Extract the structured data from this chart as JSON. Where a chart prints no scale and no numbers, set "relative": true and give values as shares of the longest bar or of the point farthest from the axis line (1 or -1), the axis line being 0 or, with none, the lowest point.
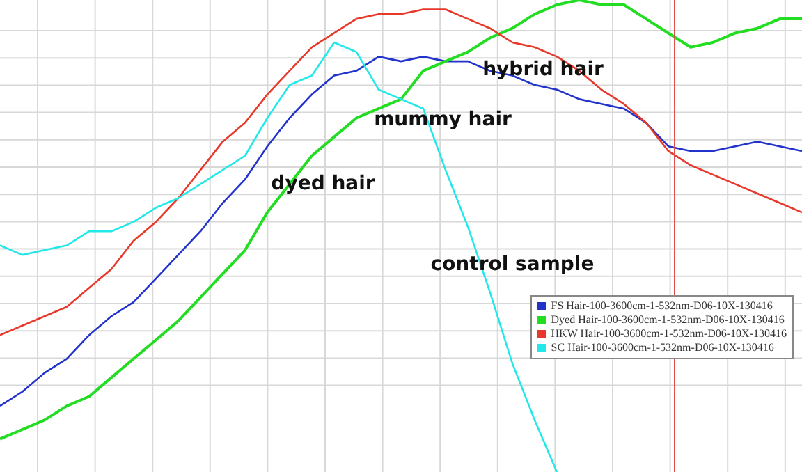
{
  "chart_data": {
    "type": "line",
    "relative": true,
    "grid": true,
    "legend": "right",
    "marker": "none",
    "line_style": "solid",
    "categories": [
      null,
      null,
      null,
      null,
      null,
      null,
      null,
      null,
      null,
      null,
      null,
      null,
      null,
      null,
      null,
      null,
      null,
      null,
      null,
      null,
      null,
      null,
      null,
      null,
      null,
      null,
      null,
      null,
      null,
      null,
      null,
      null,
      null,
      null,
      null,
      null,
      null
    ],
    "series": [
      {
        "name": "FS Hair-100-3600cm-1-532nm-D06-10X-130416",
        "color": "#2233cc",
        "values": [
          0.14,
          0.17,
          0.21,
          0.24,
          0.29,
          0.33,
          0.36,
          0.41,
          0.46,
          0.51,
          0.57,
          0.62,
          0.69,
          0.75,
          0.8,
          0.84,
          0.85,
          0.88,
          0.87,
          0.88,
          0.87,
          0.87,
          0.85,
          0.84,
          0.82,
          0.81,
          0.79,
          0.78,
          0.77,
          0.74,
          0.69,
          0.68,
          0.68,
          0.69,
          0.7,
          0.69,
          0.68
        ]
      },
      {
        "name": "Dyed Hair-100-3600cm-1-532nm-D06-10X-130416",
        "color": "#22dd22",
        "values": [
          0.07,
          0.09,
          0.11,
          0.14,
          0.16,
          0.2,
          0.24,
          0.28,
          0.32,
          0.37,
          0.42,
          0.47,
          0.55,
          0.61,
          0.67,
          0.71,
          0.75,
          0.77,
          0.79,
          0.85,
          0.87,
          0.89,
          0.92,
          0.94,
          0.97,
          0.99,
          1.0,
          0.99,
          0.99,
          0.96,
          0.93,
          0.9,
          0.91,
          0.93,
          0.94,
          0.96,
          0.96
        ]
      },
      {
        "name": "HKW Hair-100-3600cm-1-532nm-D06-10X-130416",
        "color": "#e8382a",
        "values": [
          0.29,
          0.31,
          0.33,
          0.35,
          0.39,
          0.43,
          0.49,
          0.53,
          0.58,
          0.64,
          0.7,
          0.74,
          0.8,
          0.85,
          0.9,
          0.93,
          0.96,
          0.97,
          0.97,
          0.98,
          0.98,
          0.96,
          0.94,
          0.91,
          0.9,
          0.88,
          0.85,
          0.81,
          0.78,
          0.74,
          0.68,
          0.65,
          0.63,
          0.61,
          0.59,
          0.57,
          0.55
        ]
      },
      {
        "name": "SC Hair-100-3600cm-1-532nm-D06-10X-130416",
        "color": "#22e8e8",
        "values": [
          0.48,
          0.46,
          0.47,
          0.48,
          0.51,
          0.51,
          0.53,
          0.56,
          0.58,
          0.61,
          0.64,
          0.67,
          0.75,
          0.82,
          0.84,
          0.91,
          0.89,
          0.81,
          0.79,
          0.77,
          0.64,
          0.52,
          0.38,
          0.23,
          0.11,
          0.0,
          null,
          null,
          null,
          null,
          null,
          null,
          null,
          null,
          null,
          null,
          null
        ]
      }
    ],
    "annotations": [
      "hybrid hair",
      "mummy hair",
      "dyed hair",
      "control sample"
    ]
  }
}
